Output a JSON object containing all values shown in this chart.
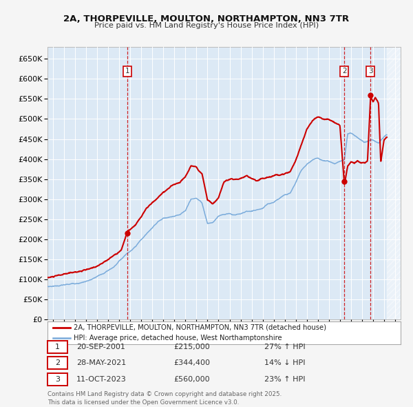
{
  "title": "2A, THORPEVILLE, MOULTON, NORTHAMPTON, NN3 7TR",
  "subtitle": "Price paid vs. HM Land Registry's House Price Index (HPI)",
  "hpi_color": "#7aabdb",
  "price_color": "#cc0000",
  "plot_bg": "#dce9f5",
  "grid_color": "#ffffff",
  "fig_bg": "#f5f5f5",
  "legend_items": [
    "2A, THORPEVILLE, MOULTON, NORTHAMPTON, NN3 7TR (detached house)",
    "HPI: Average price, detached house, West Northamptonshire"
  ],
  "transactions": [
    {
      "num": 1,
      "date": "20-SEP-2001",
      "price": 215000,
      "price_str": "£215,000",
      "pct": "27% ↑ HPI",
      "year": 2001.72
    },
    {
      "num": 2,
      "date": "28-MAY-2021",
      "price": 344400,
      "price_str": "£344,400",
      "pct": "14% ↓ HPI",
      "year": 2021.41
    },
    {
      "num": 3,
      "date": "11-OCT-2023",
      "price": 560000,
      "price_str": "£560,000",
      "pct": "23% ↑ HPI",
      "year": 2023.78
    }
  ],
  "footnote": "Contains HM Land Registry data © Crown copyright and database right 2025.\nThis data is licensed under the Open Government Licence v3.0.",
  "ylim": [
    0,
    680000
  ],
  "yticks": [
    0,
    50000,
    100000,
    150000,
    200000,
    250000,
    300000,
    350000,
    400000,
    450000,
    500000,
    550000,
    600000,
    650000
  ],
  "xmin": 1994.5,
  "xmax": 2026.5,
  "hatch_start": 2025.25
}
